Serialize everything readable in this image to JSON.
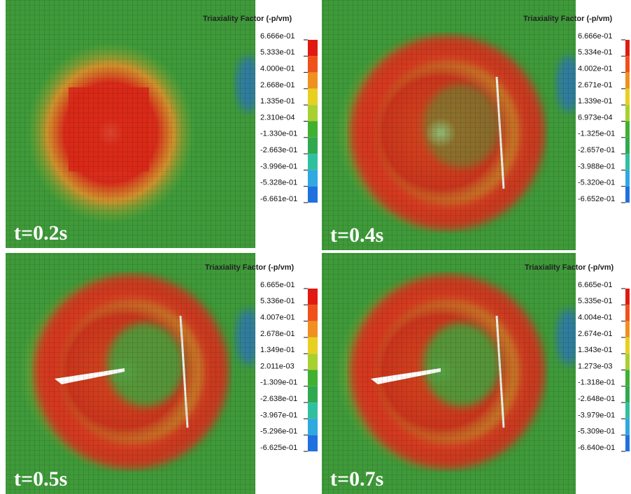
{
  "panels": [
    {
      "time_label": "t=0.2s",
      "legend_title": "Triaxiality Factor (-p/vm)",
      "legend_labels": [
        "6.666e-01",
        "5.333e-01",
        "4.000e-01",
        "2.668e-01",
        "1.335e-01",
        "2.310e-04",
        "-1.330e-01",
        "-2.663e-01",
        "-3.996e-01",
        "-5.328e-01",
        "-6.661e-01"
      ]
    },
    {
      "time_label": "t=0.4s",
      "legend_title": "Triaxiality Factor (-p/vm)",
      "legend_labels": [
        "6.666e-01",
        "5.334e-01",
        "4.002e-01",
        "2.671e-01",
        "1.339e-01",
        "6.973e-04",
        "-1.325e-01",
        "-2.657e-01",
        "-3.988e-01",
        "-5.320e-01",
        "-6.652e-01"
      ]
    },
    {
      "time_label": "t=0.5s",
      "legend_title": "Triaxiality Factor (-p/vm)",
      "legend_labels": [
        "6.665e-01",
        "5.336e-01",
        "4.007e-01",
        "2.678e-01",
        "1.349e-01",
        "2.011e-03",
        "-1.309e-01",
        "-2.638e-01",
        "-3.967e-01",
        "-5.296e-01",
        "-6.625e-01"
      ]
    },
    {
      "time_label": "t=0.7s",
      "legend_title": "Triaxiality Factor (-p/vm)",
      "legend_labels": [
        "6.665e-01",
        "5.335e-01",
        "4.004e-01",
        "2.674e-01",
        "1.343e-01",
        "1.273e-03",
        "-1.318e-01",
        "-2.648e-01",
        "-3.979e-01",
        "-5.309e-01",
        "-6.640e-01"
      ]
    }
  ]
}
